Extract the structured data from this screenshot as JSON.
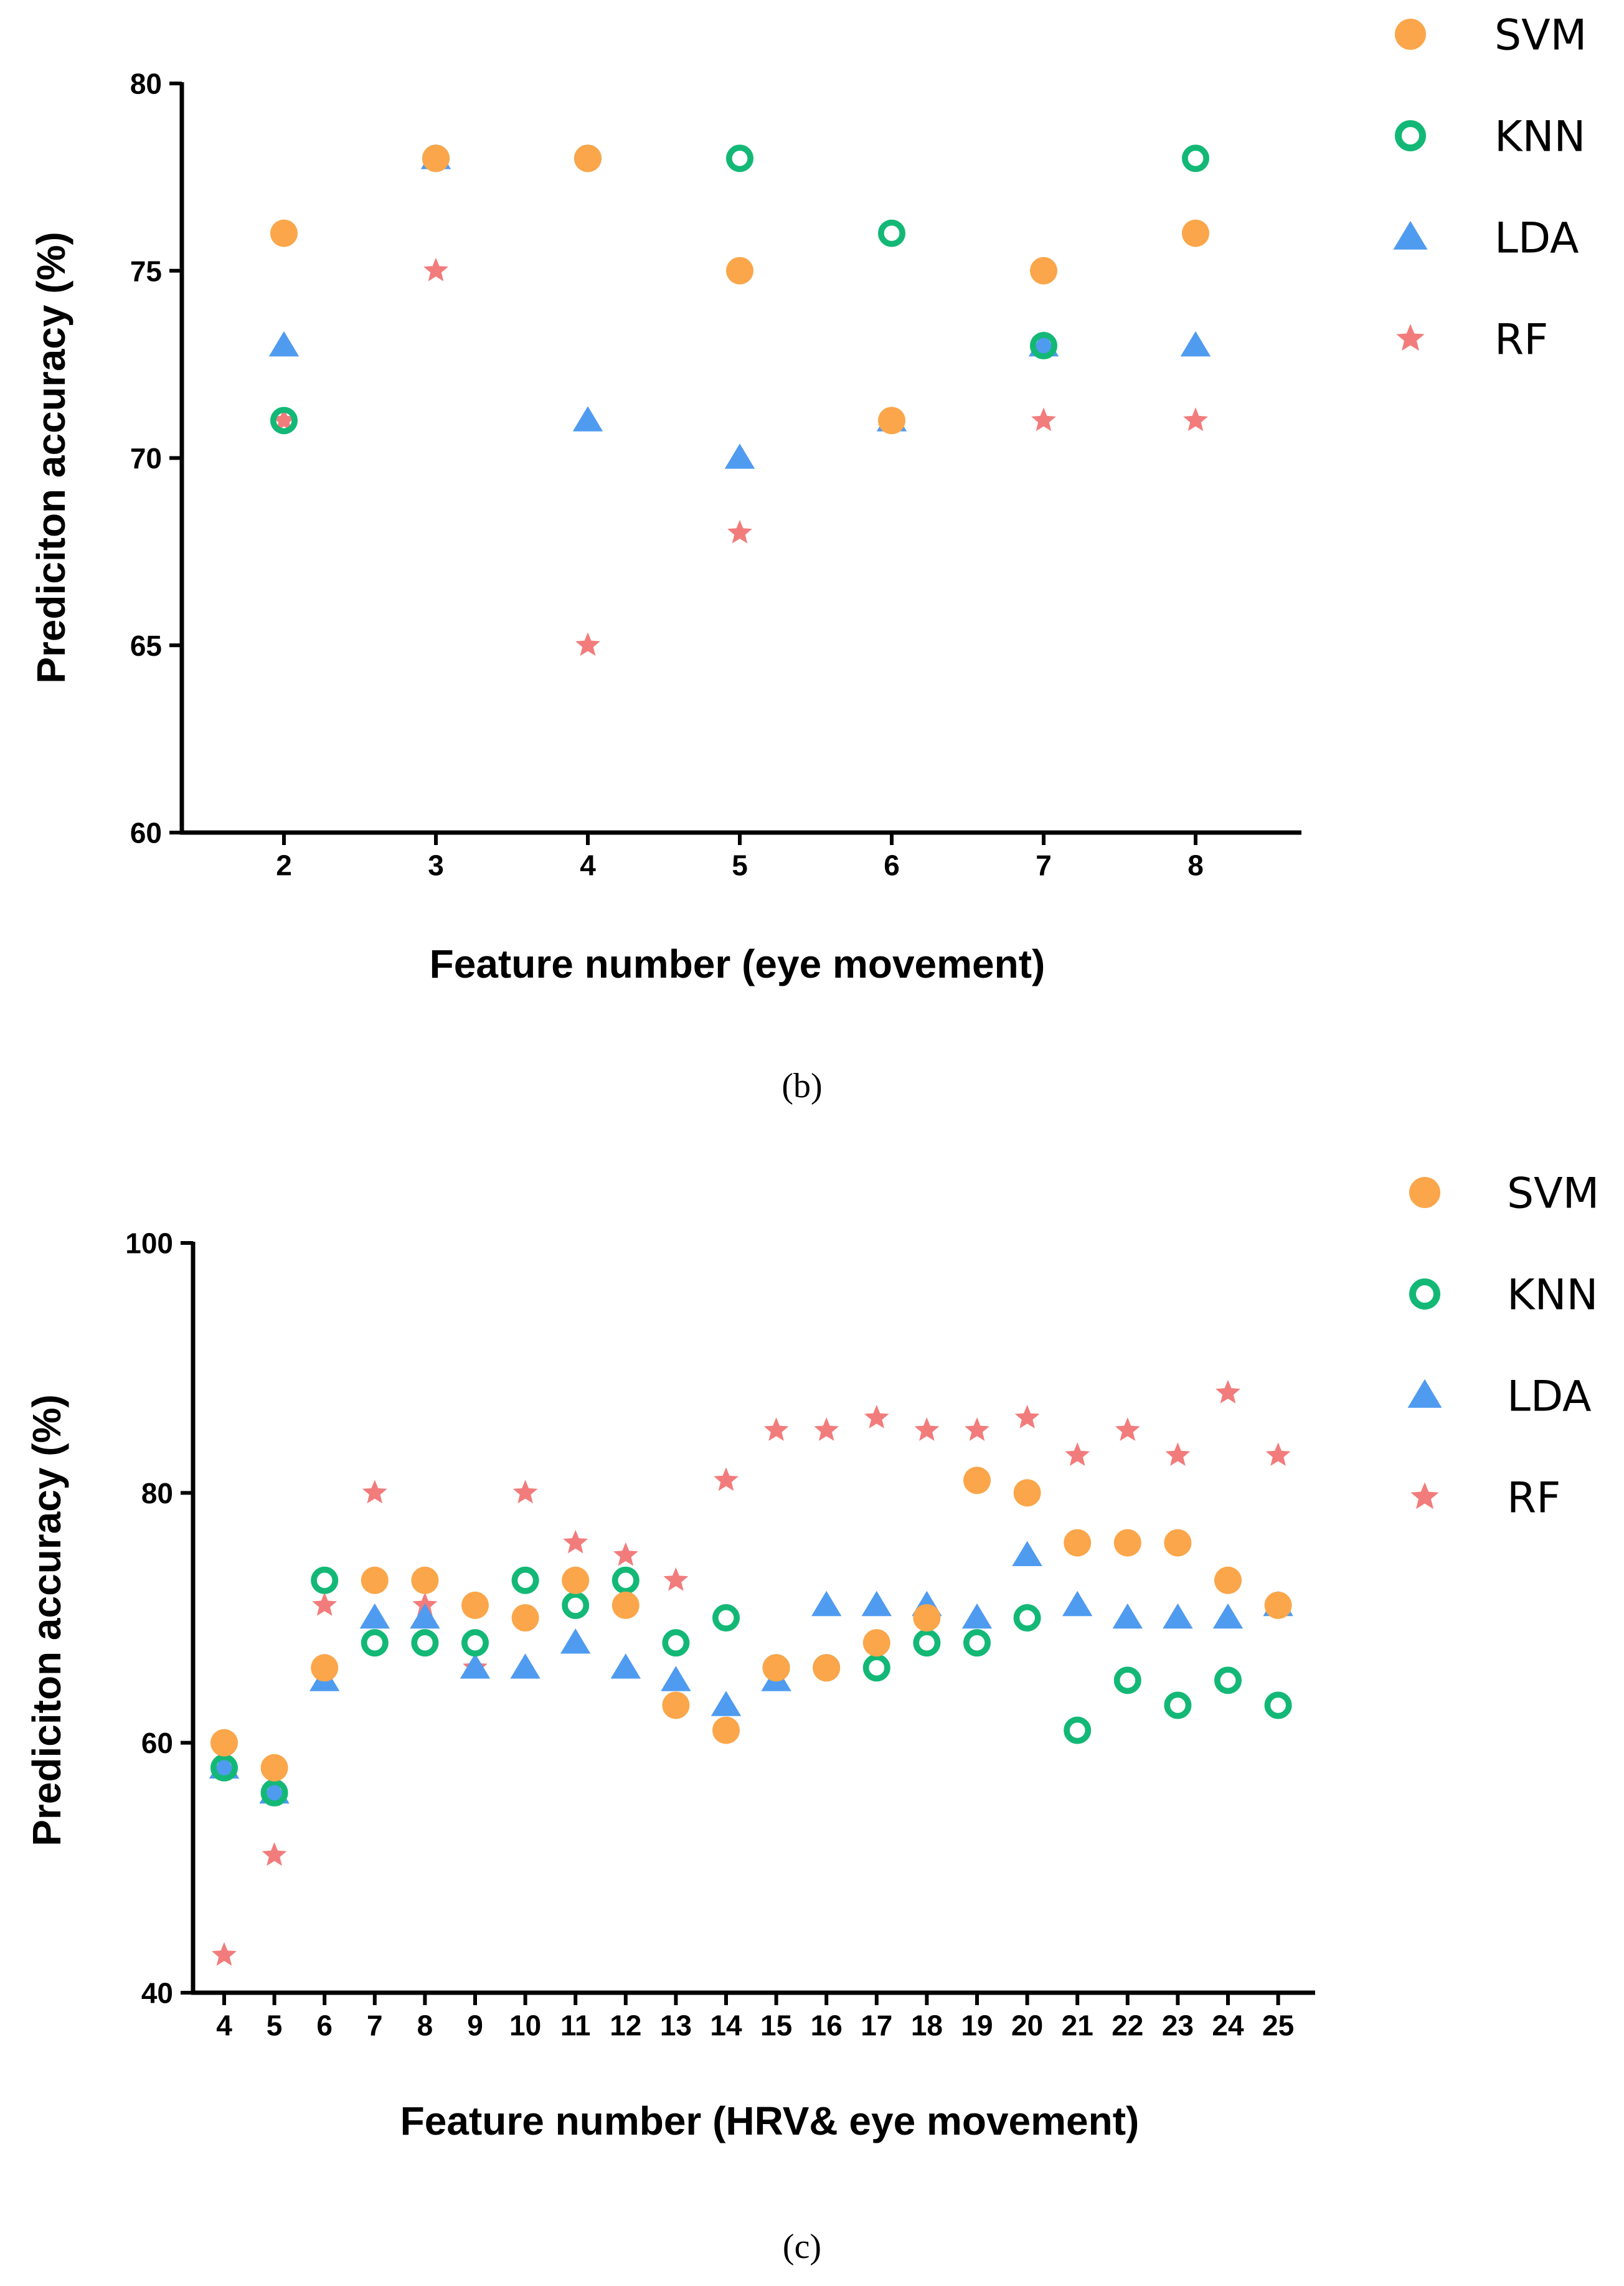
{
  "colors": {
    "svm": "#FBA64A",
    "knn": "#13B876",
    "lda": "#4F9BF0",
    "rf": "#F27C7C",
    "axis": "#000000"
  },
  "chart_data": [
    {
      "type": "scatter",
      "caption": "(b)",
      "xlabel": "Feature number (eye movement)",
      "ylabel": "Prediciton accuracy (%)",
      "ylim": [
        60,
        80
      ],
      "yticks": [
        60,
        65,
        70,
        75,
        80
      ],
      "categories": [
        "2",
        "3",
        "4",
        "5",
        "6",
        "7",
        "8"
      ],
      "legend_position": "top-right",
      "series": [
        {
          "name": "SVM",
          "marker": "filled-circle",
          "values": [
            76,
            78,
            78,
            75,
            71,
            75,
            76
          ]
        },
        {
          "name": "KNN",
          "marker": "open-circle",
          "values": [
            71,
            78,
            78,
            78,
            76,
            73,
            78
          ]
        },
        {
          "name": "LDA",
          "marker": "triangle",
          "values": [
            73,
            78,
            71,
            70,
            71,
            73,
            73
          ]
        },
        {
          "name": "RF",
          "marker": "star",
          "values": [
            71,
            75,
            65,
            68,
            71,
            71,
            71
          ]
        }
      ]
    },
    {
      "type": "scatter",
      "caption": "(c)",
      "xlabel": "Feature number (HRV& eye movement)",
      "ylabel": "Prediciton accuracy (%)",
      "ylim": [
        40,
        100
      ],
      "yticks": [
        40,
        60,
        80,
        100
      ],
      "categories": [
        "4",
        "5",
        "6",
        "7",
        "8",
        "9",
        "10",
        "11",
        "12",
        "13",
        "14",
        "15",
        "16",
        "17",
        "18",
        "19",
        "20",
        "21",
        "22",
        "23",
        "24",
        "25"
      ],
      "legend_position": "top-right",
      "series": [
        {
          "name": "SVM",
          "marker": "filled-circle",
          "values": [
            60,
            58,
            66,
            73,
            73,
            71,
            70,
            73,
            71,
            63,
            61,
            66,
            66,
            68,
            70,
            81,
            80,
            76,
            76,
            76,
            73,
            71
          ]
        },
        {
          "name": "KNN",
          "marker": "open-circle",
          "values": [
            58,
            56,
            73,
            68,
            68,
            68,
            73,
            71,
            73,
            68,
            70,
            66,
            66,
            66,
            68,
            68,
            70,
            61,
            65,
            63,
            65,
            63
          ]
        },
        {
          "name": "LDA",
          "marker": "triangle",
          "values": [
            58,
            56,
            65,
            70,
            70,
            66,
            66,
            68,
            66,
            65,
            63,
            65,
            71,
            71,
            71,
            70,
            75,
            71,
            70,
            70,
            70,
            71
          ]
        },
        {
          "name": "RF",
          "marker": "star",
          "values": [
            43,
            51,
            71,
            80,
            71,
            66,
            80,
            76,
            75,
            73,
            81,
            85,
            85,
            86,
            85,
            85,
            86,
            83,
            85,
            83,
            88,
            83
          ]
        }
      ]
    }
  ]
}
